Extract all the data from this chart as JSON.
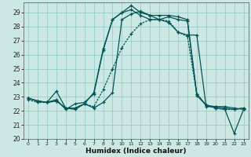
{
  "title": "",
  "xlabel": "Humidex (Indice chaleur)",
  "background_color": "#cce8e4",
  "grid_color": "#99cccc",
  "line_color": "#005555",
  "xlim": [
    -0.5,
    23.5
  ],
  "ylim": [
    20.0,
    29.7
  ],
  "yticks": [
    20,
    21,
    22,
    23,
    24,
    25,
    26,
    27,
    28,
    29
  ],
  "xticks": [
    0,
    1,
    2,
    3,
    4,
    5,
    6,
    7,
    8,
    9,
    10,
    11,
    12,
    13,
    14,
    15,
    16,
    17,
    18,
    19,
    20,
    21,
    22,
    23
  ],
  "line1_x": [
    0,
    1,
    2,
    3,
    4,
    5,
    6,
    7,
    8,
    9,
    10,
    11,
    12,
    13,
    14,
    15,
    16,
    17,
    18,
    19,
    20,
    21,
    22,
    23
  ],
  "line1_y": [
    22.9,
    22.7,
    22.6,
    23.4,
    22.2,
    22.2,
    22.5,
    23.3,
    26.4,
    28.5,
    29.0,
    29.5,
    29.0,
    28.8,
    28.8,
    28.8,
    28.7,
    28.5,
    23.2,
    22.4,
    22.2,
    22.1,
    20.4,
    22.1
  ],
  "line2_x": [
    0,
    1,
    2,
    3,
    4,
    5,
    6,
    7,
    8,
    9,
    10,
    11,
    12,
    13,
    14,
    15,
    16,
    17,
    18,
    19,
    20,
    21,
    22,
    23
  ],
  "line2_y": [
    22.9,
    22.7,
    22.6,
    22.7,
    22.2,
    22.1,
    22.5,
    22.2,
    22.6,
    23.3,
    28.5,
    28.9,
    29.1,
    28.8,
    28.5,
    28.3,
    27.6,
    27.4,
    27.4,
    22.3,
    22.3,
    22.3,
    22.2,
    22.1
  ],
  "line3_x": [
    0,
    1,
    2,
    3,
    4,
    5,
    6,
    7,
    8,
    9,
    10,
    11,
    12,
    13,
    14,
    15,
    16,
    17,
    18,
    19,
    20,
    21,
    22,
    23
  ],
  "line3_y": [
    22.9,
    22.7,
    22.6,
    22.8,
    22.1,
    22.5,
    22.6,
    23.2,
    26.3,
    28.5,
    29.0,
    29.2,
    28.8,
    28.5,
    28.5,
    28.7,
    28.5,
    28.4,
    23.1,
    22.4,
    22.3,
    22.2,
    22.1,
    22.2
  ],
  "line4_x": [
    0,
    1,
    2,
    3,
    4,
    5,
    6,
    7,
    8,
    9,
    10,
    11,
    12,
    13,
    14,
    15,
    16,
    17,
    18,
    19,
    20,
    21,
    22,
    23
  ],
  "line4_y": [
    22.8,
    22.6,
    22.6,
    22.7,
    22.2,
    22.2,
    22.5,
    22.3,
    23.5,
    25.0,
    26.5,
    27.5,
    28.2,
    28.5,
    28.5,
    28.4,
    27.6,
    27.3,
    23.2,
    22.4,
    22.2,
    22.1,
    22.1,
    22.2
  ]
}
